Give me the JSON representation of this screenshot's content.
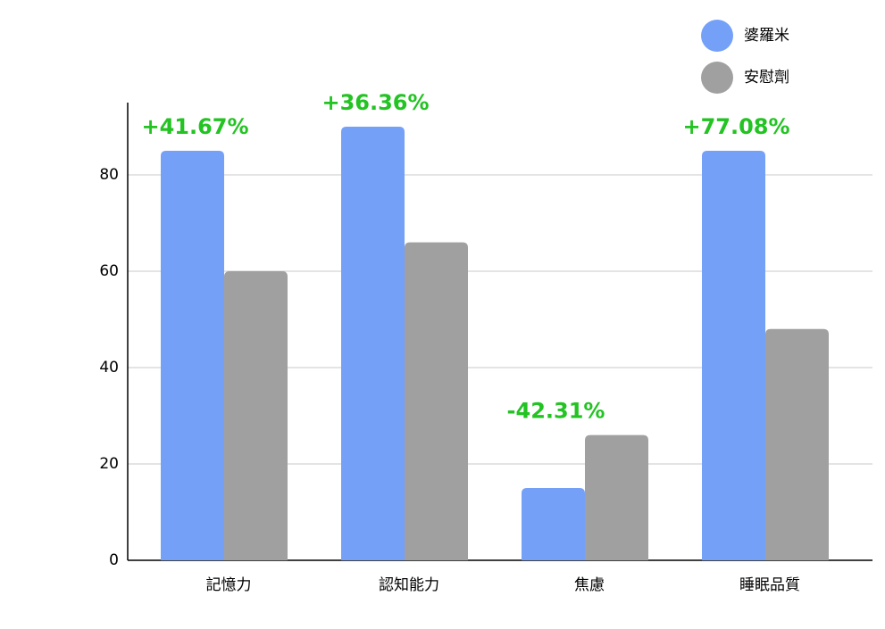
{
  "chart_data": {
    "type": "bar",
    "categories": [
      "記憶力",
      "認知能力",
      "焦慮",
      "睡眠品質"
    ],
    "series": [
      {
        "name": "婆羅米",
        "color": "#74a0f8",
        "values": [
          85,
          90,
          15,
          85
        ]
      },
      {
        "name": "安慰劑",
        "color": "#a0a0a0",
        "values": [
          60,
          66,
          26,
          48
        ]
      }
    ],
    "annotations": [
      "+41.67%",
      "+36.36%",
      "-42.31%",
      "+77.08%"
    ],
    "ylim": [
      0,
      95
    ],
    "yticks": [
      0,
      20,
      40,
      60,
      80
    ],
    "grid": true,
    "legend": "top-right"
  }
}
